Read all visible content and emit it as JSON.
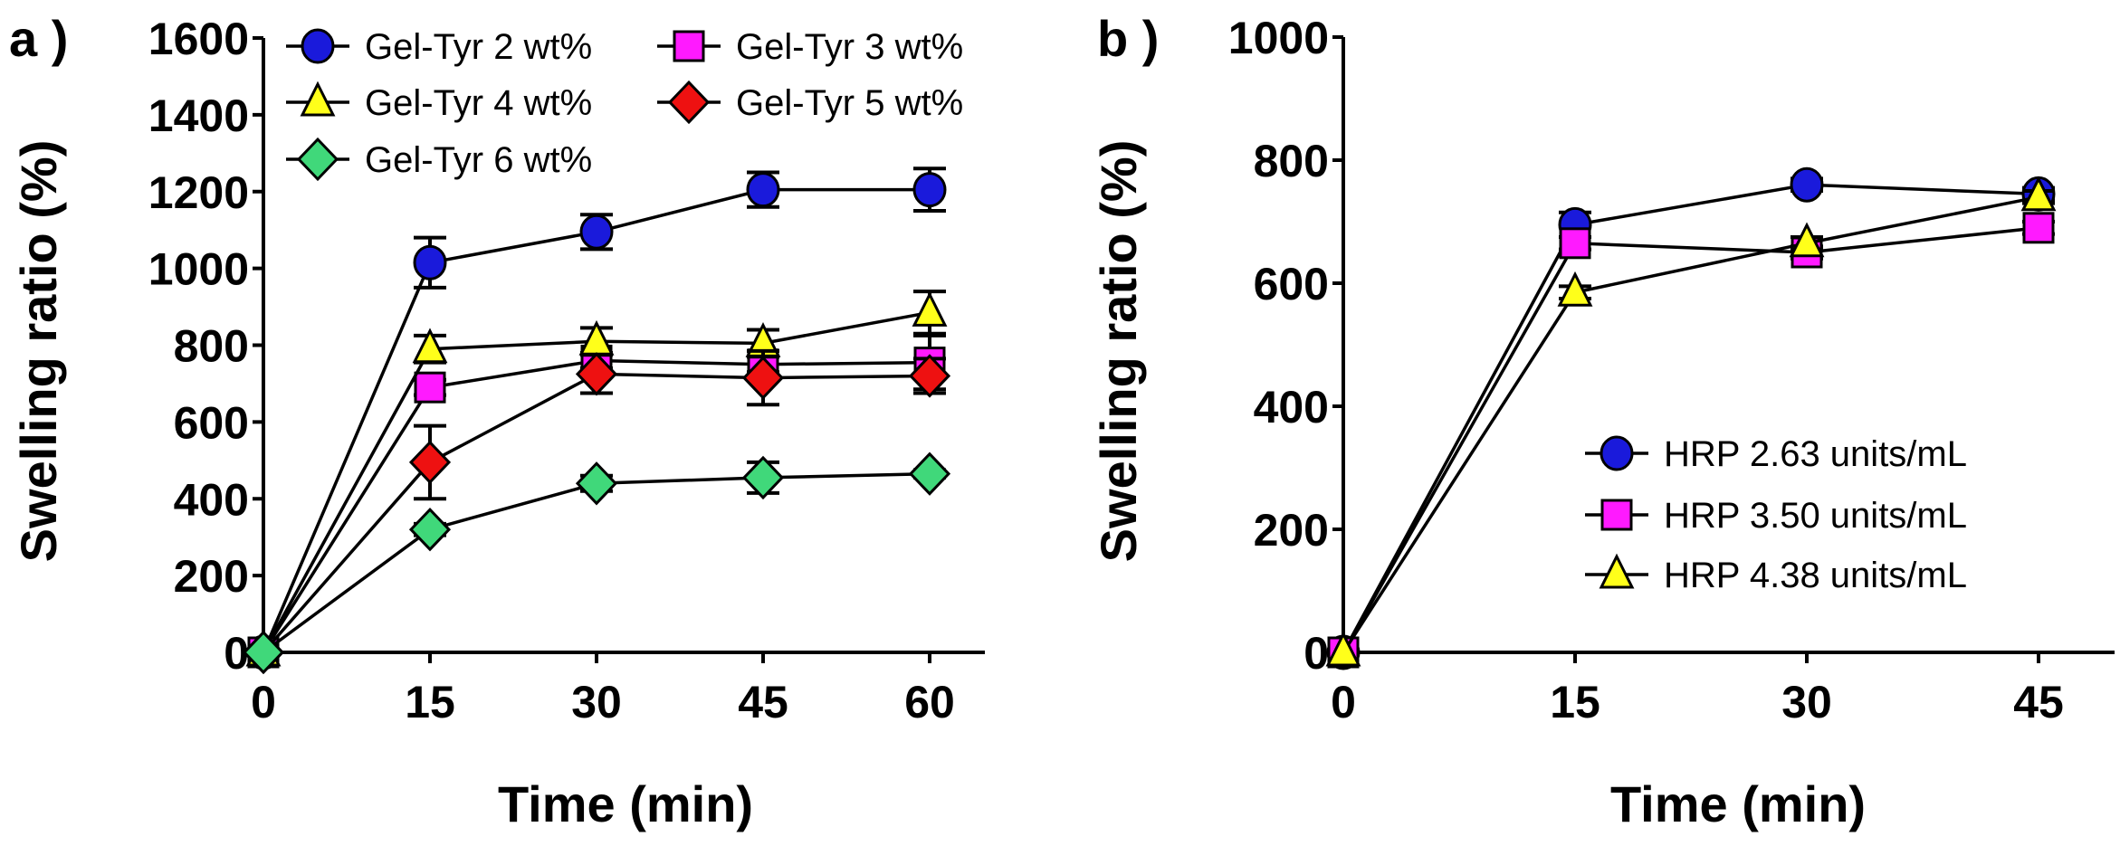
{
  "chart_data": [
    {
      "type": "line",
      "panel_label": "a )",
      "xlabel": "Time (min)",
      "ylabel": "Swelling ratio (%)",
      "x": [
        0,
        15,
        30,
        45,
        60
      ],
      "xticks": [
        "0",
        "15",
        "30",
        "45",
        "60"
      ],
      "yticks": [
        "0",
        "200",
        "400",
        "600",
        "800",
        "1000",
        "1200",
        "1400",
        "1600"
      ],
      "xlim": [
        0,
        63.5
      ],
      "ylim": [
        0,
        1600
      ],
      "grid": false,
      "legend_position": "top",
      "series": [
        {
          "name": "Gel-Tyr 2 wt%",
          "marker": "circle",
          "color": "#1a1adb",
          "values": [
            0,
            1015,
            1095,
            1205,
            1205
          ],
          "errors": [
            0,
            65,
            45,
            45,
            55
          ]
        },
        {
          "name": "Gel-Tyr 3 wt%",
          "marker": "square",
          "color": "#ff1aff",
          "values": [
            0,
            690,
            760,
            750,
            755
          ],
          "errors": [
            0,
            20,
            20,
            20,
            70
          ]
        },
        {
          "name": "Gel-Tyr 4 wt%",
          "marker": "triangle",
          "color": "#ffff1a",
          "values": [
            0,
            790,
            810,
            805,
            885
          ],
          "errors": [
            0,
            35,
            35,
            35,
            55
          ]
        },
        {
          "name": "Gel-Tyr 5 wt%",
          "marker": "diamond",
          "color": "#ee1111",
          "values": [
            0,
            495,
            725,
            715,
            720
          ],
          "errors": [
            0,
            95,
            50,
            70,
            45
          ]
        },
        {
          "name": "Gel-Tyr 6 wt%",
          "marker": "diamond",
          "color": "#40d87a",
          "values": [
            0,
            320,
            440,
            455,
            465
          ],
          "errors": [
            0,
            15,
            20,
            40,
            10
          ]
        }
      ]
    },
    {
      "type": "line",
      "panel_label": "b )",
      "xlabel": "Time (min)",
      "ylabel": "Swelling ratio (%)",
      "x": [
        0,
        15,
        30,
        45
      ],
      "xticks": [
        "0",
        "15",
        "30",
        "45"
      ],
      "yticks": [
        "0",
        "200",
        "400",
        "600",
        "800",
        "1000"
      ],
      "xlim": [
        0,
        48.5
      ],
      "ylim": [
        0,
        1000
      ],
      "grid": false,
      "legend_position": "bottom-right",
      "series": [
        {
          "name": "HRP 2.63 units/mL",
          "marker": "circle",
          "color": "#1a1adb",
          "values": [
            0,
            695,
            760,
            745
          ],
          "errors": [
            0,
            20,
            10,
            10
          ]
        },
        {
          "name": "HRP 3.50 units/mL",
          "marker": "square",
          "color": "#ff1aff",
          "values": [
            0,
            665,
            650,
            690
          ],
          "errors": [
            0,
            10,
            10,
            10
          ]
        },
        {
          "name": "HRP 4.38 units/mL",
          "marker": "triangle",
          "color": "#ffff1a",
          "values": [
            0,
            585,
            665,
            740
          ],
          "errors": [
            0,
            10,
            10,
            10
          ]
        }
      ]
    }
  ]
}
